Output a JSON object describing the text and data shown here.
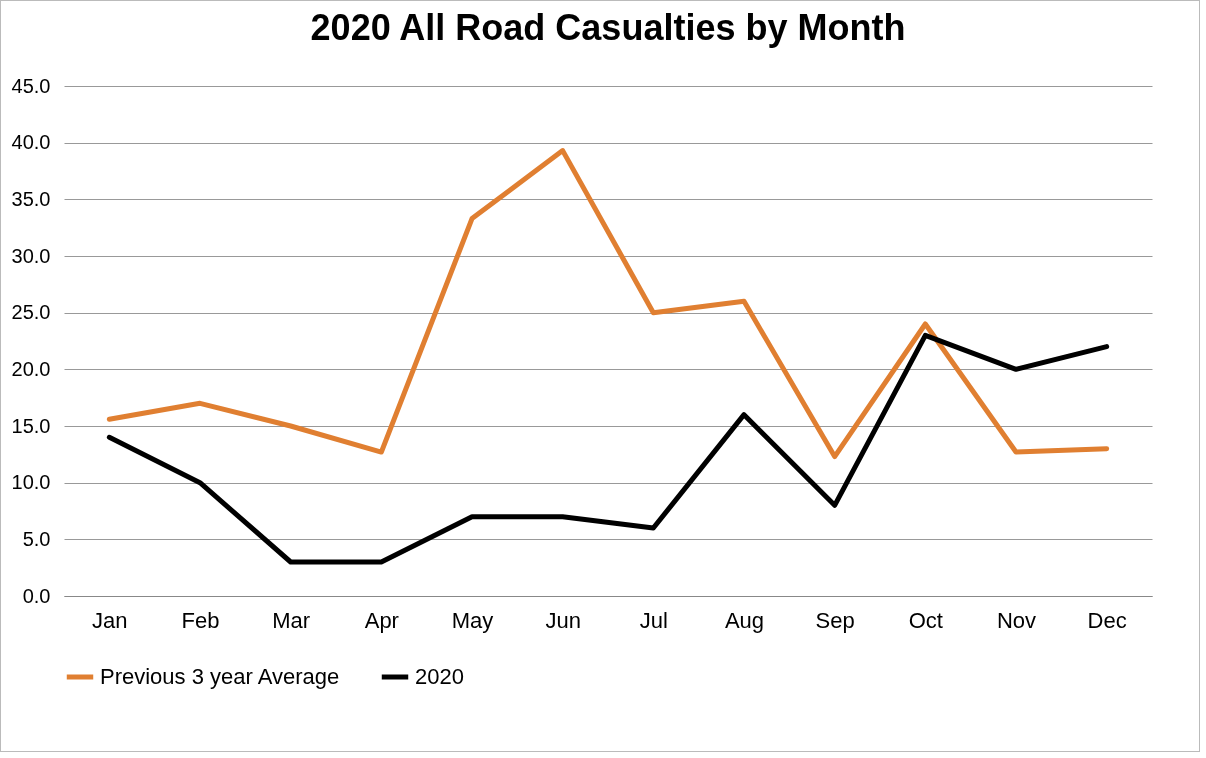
{
  "chart_data": {
    "type": "line",
    "title": "2020 All Road Casualties by Month",
    "categories": [
      "Jan",
      "Feb",
      "Mar",
      "Apr",
      "May",
      "Jun",
      "Jul",
      "Aug",
      "Sep",
      "Oct",
      "Nov",
      "Dec"
    ],
    "series": [
      {
        "name": "Previous 3 year Average",
        "color": "#e07f31",
        "values": [
          15.6,
          17.0,
          15.0,
          12.7,
          33.3,
          39.3,
          25.0,
          26.0,
          12.3,
          24.0,
          12.7,
          13.0
        ]
      },
      {
        "name": "2020",
        "color": "#000000",
        "values": [
          14,
          10,
          3,
          3,
          7,
          7,
          6,
          16,
          8,
          23,
          20,
          22
        ]
      }
    ],
    "ylim": [
      0,
      45
    ],
    "yticks": [
      {
        "value": 0,
        "label": "0.0"
      },
      {
        "value": 5,
        "label": "5.0"
      },
      {
        "value": 10,
        "label": "10.0"
      },
      {
        "value": 15,
        "label": "15.0"
      },
      {
        "value": 20,
        "label": "20.0"
      },
      {
        "value": 25,
        "label": "25.0"
      },
      {
        "value": 30,
        "label": "30.0"
      },
      {
        "value": 35,
        "label": "35.0"
      },
      {
        "value": 40,
        "label": "40.0"
      },
      {
        "value": 45,
        "label": "45.0"
      }
    ],
    "grid": "y",
    "legend": "bottom",
    "marker": "none",
    "line_style": "solid"
  }
}
